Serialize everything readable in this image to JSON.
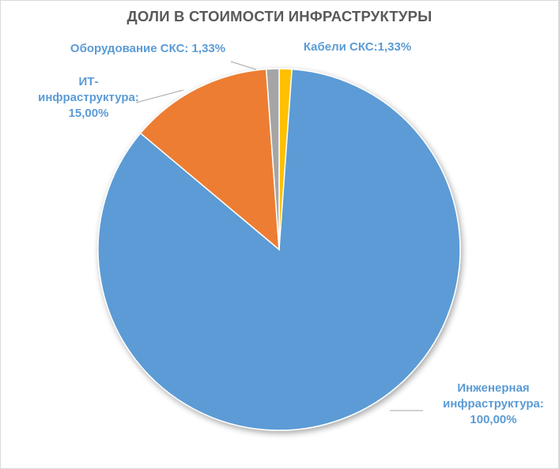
{
  "chart_data": {
    "type": "pie",
    "title": "ДОЛИ В СТОИМОСТИ ИНФРАСТРУКТУРЫ",
    "categories": [
      "Кабели СКС",
      "Инженерная инфраструктура",
      "ИТ-инфраструктура",
      "Оборудование СКС"
    ],
    "values": [
      1.33,
      100.0,
      15.0,
      1.33
    ],
    "colors": [
      "#ffc000",
      "#5b9bd5",
      "#ed7d31",
      "#a5a5a5"
    ],
    "data_labels": [
      [
        "Кабели СКС:1,33%"
      ],
      [
        "Инженерная",
        "инфраструктура:",
        "100,00%"
      ],
      [
        "ИТ-",
        "инфраструктура:",
        "15,00%"
      ],
      [
        "Оборудование СКС: 1,33%"
      ]
    ],
    "label_color": "#5b9bd5",
    "legend": "none",
    "grid": false
  }
}
